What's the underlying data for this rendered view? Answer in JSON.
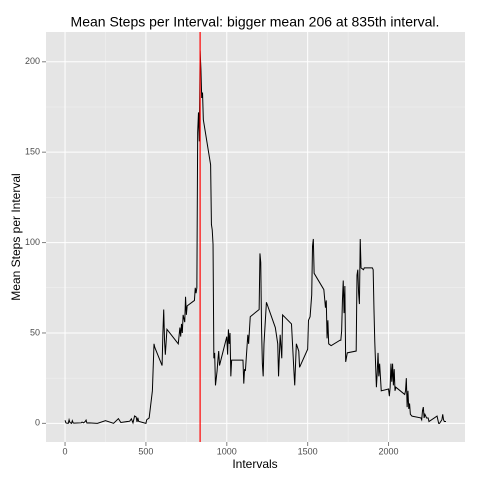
{
  "chart_data": {
    "type": "line",
    "title": "Mean Steps per Interval: bigger mean 206 at 835th interval.",
    "x_label": "Intervals",
    "y_label": "Mean Steps per Interval",
    "x": [
      0,
      5,
      10,
      20,
      25,
      30,
      40,
      45,
      50,
      55,
      100,
      105,
      115,
      125,
      130,
      135,
      150,
      200,
      250,
      300,
      330,
      345,
      400,
      410,
      420,
      430,
      440,
      445,
      450,
      455,
      500,
      505,
      520,
      540,
      550,
      555,
      600,
      605,
      610,
      615,
      620,
      625,
      630,
      700,
      710,
      715,
      720,
      725,
      730,
      740,
      745,
      750,
      755,
      800,
      805,
      810,
      815,
      820,
      825,
      830,
      835,
      840,
      845,
      850,
      855,
      900,
      905,
      910,
      915,
      920,
      925,
      930,
      935,
      940,
      945,
      950,
      955,
      1000,
      1005,
      1010,
      1015,
      1020,
      1025,
      1030,
      1100,
      1105,
      1110,
      1115,
      1130,
      1135,
      1145,
      1200,
      1205,
      1210,
      1215,
      1220,
      1225,
      1230,
      1245,
      1300,
      1315,
      1320,
      1330,
      1340,
      1345,
      1400,
      1415,
      1420,
      1430,
      1445,
      1450,
      1500,
      1505,
      1515,
      1525,
      1530,
      1535,
      1540,
      1600,
      1610,
      1615,
      1620,
      1625,
      1630,
      1645,
      1700,
      1705,
      1710,
      1715,
      1720,
      1725,
      1730,
      1735,
      1745,
      1800,
      1805,
      1810,
      1815,
      1820,
      1825,
      1830,
      1845,
      1850,
      1900,
      1905,
      1910,
      1915,
      1925,
      1930,
      1935,
      1940,
      1945,
      1955,
      2000,
      2005,
      2010,
      2015,
      2020,
      2025,
      2030,
      2035,
      2040,
      2045,
      2100,
      2105,
      2110,
      2115,
      2120,
      2125,
      2130,
      2135,
      2145,
      2200,
      2205,
      2210,
      2215,
      2220,
      2225,
      2230,
      2235,
      2245,
      2250,
      2300,
      2305,
      2310,
      2315,
      2330,
      2335,
      2340,
      2345,
      2355
    ],
    "series": [
      {
        "name": "Mean Steps",
        "color": "#000000",
        "values": [
          1.7,
          0.3,
          0.1,
          0,
          2,
          0.5,
          0,
          1.5,
          0.3,
          0.1,
          0.3,
          0.7,
          0.3,
          1.1,
          1.8,
          0.2,
          0.3,
          0,
          1.5,
          0,
          2.6,
          0.5,
          1.2,
          2.5,
          0.3,
          4.1,
          3.5,
          0.8,
          3.1,
          1.1,
          0,
          2,
          3,
          18,
          44,
          42,
          32,
          50,
          63,
          46,
          38,
          45,
          52,
          44,
          53,
          48,
          55,
          50,
          60,
          56,
          70,
          60,
          65,
          68,
          75,
          72,
          75,
          161,
          172,
          156,
          206.17,
          196,
          180,
          183,
          168,
          143,
          110,
          107,
          99,
          36,
          39,
          21,
          25,
          29,
          35,
          40,
          32,
          48,
          38,
          52,
          44,
          50,
          26,
          35,
          35,
          22,
          30,
          29,
          49,
          44,
          59,
          63,
          94,
          89,
          52,
          33,
          26,
          44,
          67,
          53,
          44,
          26,
          49,
          36,
          60,
          55,
          29,
          21,
          44,
          40,
          31,
          41,
          57,
          59,
          71,
          98,
          102,
          83,
          74,
          64,
          68,
          47,
          57,
          44,
          43,
          46,
          46,
          51,
          68,
          79,
          61,
          76,
          34,
          39,
          40,
          82,
          85,
          72,
          66,
          102,
          86,
          85,
          86,
          86,
          85,
          63,
          45,
          20,
          28,
          39,
          26,
          33,
          18,
          19,
          15,
          20,
          33,
          23,
          33,
          21,
          30,
          18,
          20,
          16,
          18,
          25,
          9,
          18,
          8,
          11,
          5,
          4,
          3,
          2,
          7,
          9,
          3,
          5,
          4,
          3,
          3,
          1,
          4,
          2,
          0,
          0,
          2,
          5,
          2,
          1,
          1
        ]
      }
    ],
    "vline": {
      "value": 835,
      "color": "#ff0000"
    },
    "xlim": [
      -117.75,
      2472.75
    ],
    "xticks": [
      0,
      500,
      1000,
      1500,
      2000
    ],
    "ylim": [
      -10.31,
      216.48
    ],
    "yticks": [
      0,
      50,
      100,
      150,
      200
    ],
    "grid": true
  }
}
